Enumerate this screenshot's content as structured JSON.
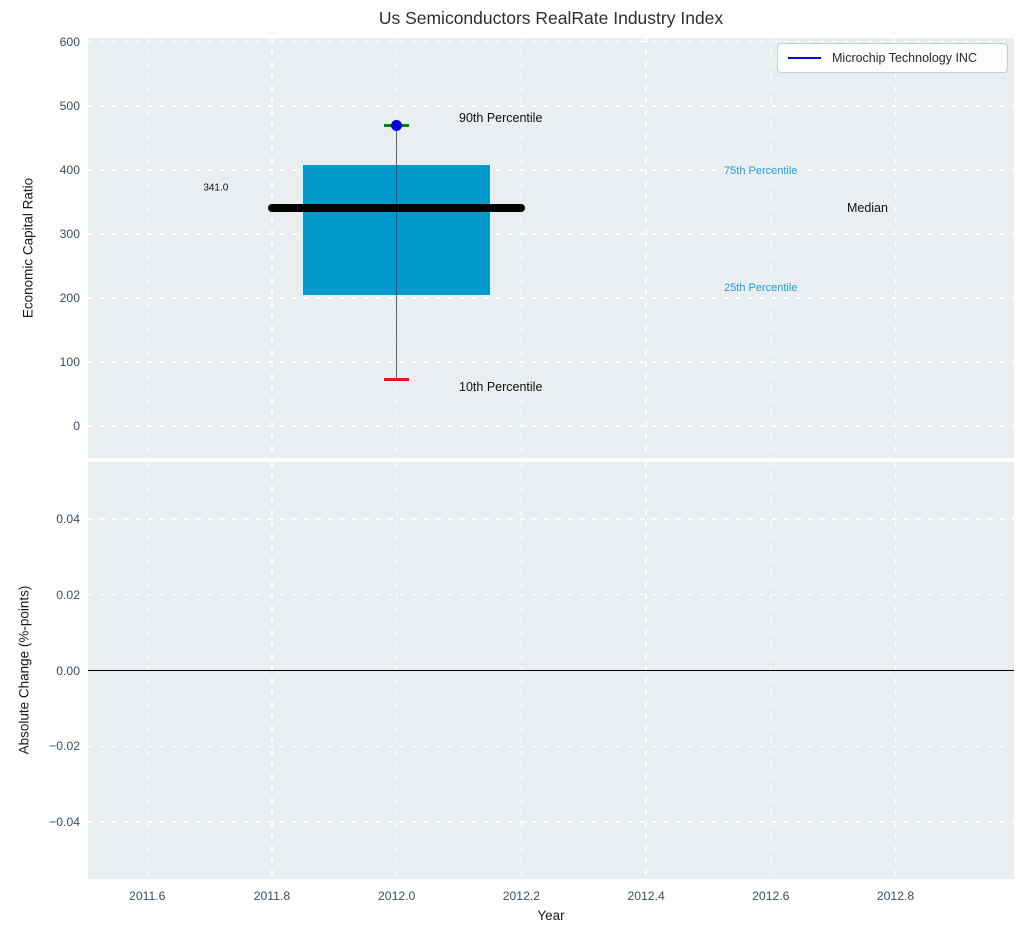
{
  "chart_data": {
    "type": "box",
    "title": "Us Semiconductors RealRate Industry Index",
    "xlabel": "Year",
    "xlim": [
      2011.505,
      2012.99
    ],
    "xticks": [
      {
        "v": 2011.6,
        "label": "2011.6"
      },
      {
        "v": 2011.8,
        "label": "2011.8"
      },
      {
        "v": 2012.0,
        "label": "2012.0"
      },
      {
        "v": 2012.2,
        "label": "2012.2"
      },
      {
        "v": 2012.4,
        "label": "2012.4"
      },
      {
        "v": 2012.6,
        "label": "2012.6"
      },
      {
        "v": 2012.8,
        "label": "2012.8"
      }
    ],
    "panels": [
      {
        "ylabel": "Economic Capital Ratio",
        "ylim": [
          -50,
          606
        ],
        "yticks": [
          {
            "v": 600,
            "label": "600"
          },
          {
            "v": 500,
            "label": "500"
          },
          {
            "v": 400,
            "label": "400"
          },
          {
            "v": 300,
            "label": "300"
          },
          {
            "v": 200,
            "label": "200"
          },
          {
            "v": 100,
            "label": "100"
          },
          {
            "v": 0,
            "label": "0"
          }
        ],
        "grid": true
      },
      {
        "ylabel": "Absolute Change (%-points)",
        "ylim": [
          -0.055,
          0.055
        ],
        "yticks": [
          {
            "v": 0.04,
            "label": "0.04"
          },
          {
            "v": 0.02,
            "label": "0.02"
          },
          {
            "v": 0.0,
            "label": "0.00"
          },
          {
            "v": -0.02,
            "label": "−0.02"
          },
          {
            "v": -0.04,
            "label": "−0.04"
          }
        ],
        "zero_line": 0.0,
        "grid": true
      }
    ],
    "box": {
      "x": 2012.0,
      "p10": 73,
      "p25": 205,
      "median": 341.0,
      "p75": 407,
      "p90": 470,
      "box_half_width": 0.15,
      "median_half_width": 0.2,
      "cap_half_width": 0.02,
      "colors": {
        "box": "#009acd",
        "median": "#000000",
        "whisker": "#4a4a4a",
        "p90_cap": "#008000",
        "p10_cap": "#ee1111"
      }
    },
    "series": [
      {
        "name": "Microchip Technology INC",
        "color": "#0000dd",
        "marker": {
          "x": 2012.0,
          "y": 470
        }
      }
    ],
    "annotations": [
      {
        "id": "p90-label",
        "text": "90th Percentile",
        "x": 2012.1,
        "y": 481,
        "color": "#111111",
        "size": 12.5,
        "align": "left"
      },
      {
        "id": "p10-label",
        "text": "10th Percentile",
        "x": 2012.1,
        "y": 61,
        "color": "#111111",
        "size": 12.5,
        "align": "left"
      },
      {
        "id": "median-value-label",
        "text": "341.0",
        "x": 2011.71,
        "y": 372,
        "color": "#111111",
        "size": 10,
        "align": "center"
      },
      {
        "id": "p75-label",
        "text": "75th Percentile",
        "x": 2012.525,
        "y": 398,
        "color": "#219ed6",
        "size": 11,
        "align": "left"
      },
      {
        "id": "p25-label",
        "text": "25th Percentile",
        "x": 2012.525,
        "y": 216,
        "color": "#219ed6",
        "size": 11,
        "align": "left"
      },
      {
        "id": "median-label",
        "text": "Median",
        "x": 2012.755,
        "y": 341,
        "color": "#111111",
        "size": 12.5,
        "align": "center"
      }
    ],
    "legend": {
      "position": "upper right"
    },
    "background": {
      "figure": "#ffffff",
      "axes": "#e9eef0",
      "grid": "#ffffff",
      "tick_color": "#3d4c63"
    }
  }
}
